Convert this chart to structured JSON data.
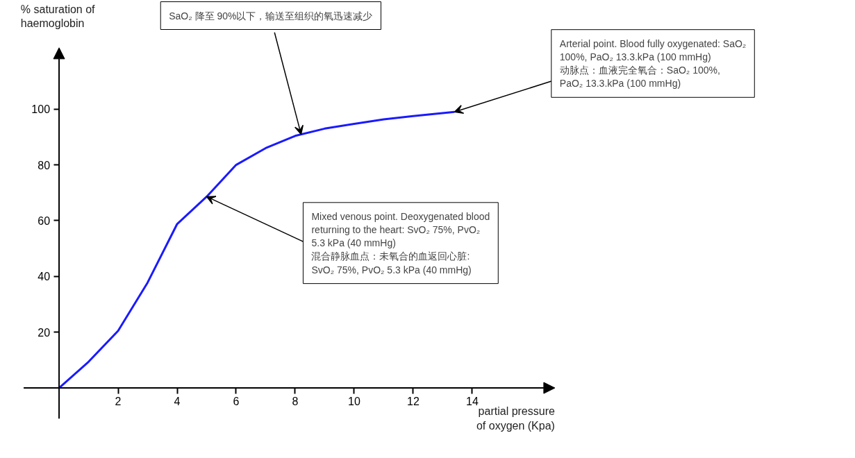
{
  "chart_data": {
    "type": "line",
    "xlabel": "partial pressure\nof oxygen (Kpa)",
    "ylabel": "% saturation of\nhaemoglobin",
    "x": [
      0,
      1,
      2,
      3,
      4,
      5,
      6,
      7,
      8,
      9,
      10,
      11,
      12,
      13.4
    ],
    "series": [
      {
        "color": "#1a1aff",
        "values": [
          0,
          9.4,
          20.5,
          37.8,
          58.8,
          68.6,
          80,
          86,
          90.4,
          93,
          94.7,
          96.3,
          97.5,
          99
        ]
      }
    ],
    "xlim": [
      -1.2,
      16.8
    ],
    "ylim": [
      -11,
      122
    ],
    "xticks": [
      2,
      4,
      6,
      8,
      10,
      12,
      14
    ],
    "yticks": [
      20,
      40,
      60,
      80,
      100
    ],
    "grid": false,
    "marker": "none",
    "line_style": "solid",
    "annotations": [
      {
        "text": "SaO₂ 降至 90%以下，输送至组织的氧迅速减少",
        "x": 8.2,
        "y": 91
      },
      {
        "text": "Arterial point. Blood fully oxygenated: SaO₂\n100%, PaO₂ 13.3.kPa (100 mmHg)\n动脉点：血液完全氧合：SaO₂ 100%,\nPaO₂ 13.3.kPa (100 mmHg)",
        "x": 13.4,
        "y": 99
      },
      {
        "text": "Mixed venous point. Deoxygenated blood\nreturning to the heart: SvO₂ 75%, PvO₂\n5.3 kPa (40 mmHg)\n混合静脉血点：未氧合的血返回心脏:\nSvO₂ 75%, PvO₂ 5.3 kPa (40 mmHg)",
        "x": 5.0,
        "y": 68.6
      }
    ]
  }
}
